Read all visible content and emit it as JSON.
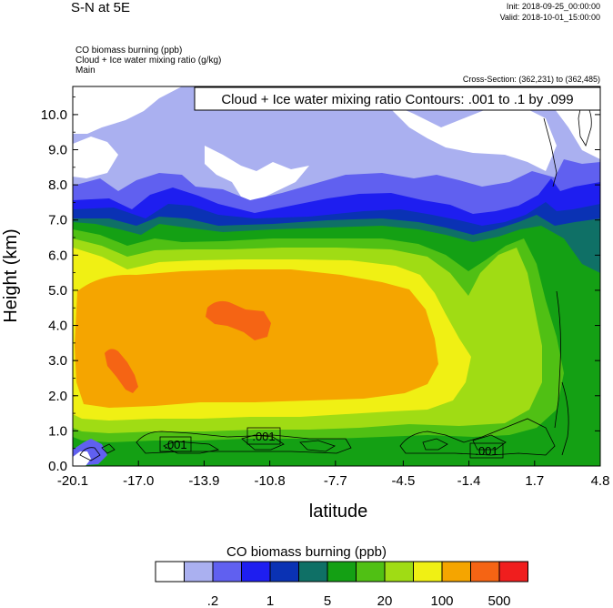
{
  "header": {
    "title": "S-N at 5E",
    "init": "Init: 2018-09-25_00:00:00",
    "valid": "Valid: 2018-10-01_15:00:00"
  },
  "meta": {
    "line1": "CO biomass burning   (ppb)",
    "line2": "Cloud + Ice water mixing ratio   (g/kg)",
    "line3": "Main"
  },
  "cross_section": "Cross-Section: (362,231) to (362,485)",
  "contour_box": "Cloud + Ice water mixing ratio Contours: .001 to .1 by .099",
  "contour_labels": [
    ".001",
    ".001",
    ".001"
  ],
  "colorbar": {
    "title": "CO biomass burning  (ppb)",
    "colors": [
      "#ffffff",
      "#aab0f0",
      "#6060f0",
      "#1e1ef0",
      "#0a32b4",
      "#0f7066",
      "#14a014",
      "#50c014",
      "#a0dc14",
      "#f0f014",
      "#f5a500",
      "#f56414",
      "#f01e1e"
    ],
    "tick_labels": [
      ".2",
      "1",
      "5",
      "20",
      "100",
      "500"
    ],
    "tick_after_box": [
      1,
      3,
      5,
      7,
      9,
      11
    ]
  },
  "chart_data": {
    "type": "heatmap",
    "title": "",
    "xlabel": "latitude",
    "ylabel": "Height (km)",
    "x_ticks": [
      "-20.1",
      "-17.0",
      "-13.9",
      "-10.8",
      "-7.7",
      "-4.5",
      "-1.4",
      "1.7",
      "4.8"
    ],
    "y_ticks": [
      "0.0",
      "1.0",
      "2.0",
      "3.0",
      "4.0",
      "5.0",
      "6.0",
      "7.0",
      "8.0",
      "9.0",
      "10.0"
    ],
    "xlim": [
      -20.1,
      4.8
    ],
    "ylim": [
      0,
      10.8
    ],
    "description_bins": "filled contours of CO biomass burning (ppb), with cloud + ice water mixing ratio contour lines"
  }
}
